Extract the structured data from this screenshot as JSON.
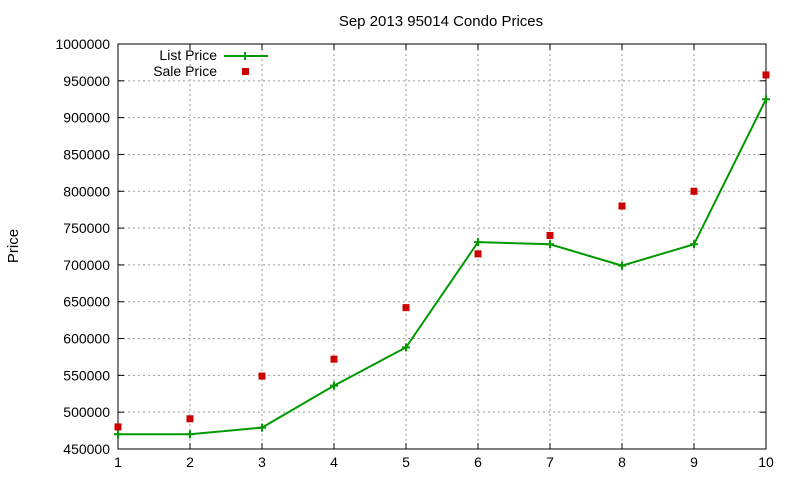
{
  "chart_data": {
    "type": "line",
    "title": "Sep 2013 95014 Condo Prices",
    "xlabel": "",
    "ylabel": "Price",
    "x": [
      1,
      2,
      3,
      4,
      5,
      6,
      7,
      8,
      9,
      10
    ],
    "xlim": [
      1,
      10
    ],
    "ylim": [
      450000,
      1000000
    ],
    "y_ticks": [
      450000,
      500000,
      550000,
      600000,
      650000,
      700000,
      750000,
      800000,
      850000,
      900000,
      950000,
      1000000
    ],
    "grid": true,
    "legend_position": "top-left",
    "series": [
      {
        "name": "List Price",
        "style": "line+cross",
        "color": "#009900",
        "values": [
          470000,
          470000,
          479000,
          536000,
          588000,
          731000,
          728000,
          699000,
          728000,
          925000
        ]
      },
      {
        "name": "Sale Price",
        "style": "square-points",
        "color": "#cc0000",
        "values": [
          480000,
          491000,
          549000,
          572000,
          642000,
          715000,
          740000,
          780000,
          800000,
          958000
        ]
      }
    ]
  }
}
